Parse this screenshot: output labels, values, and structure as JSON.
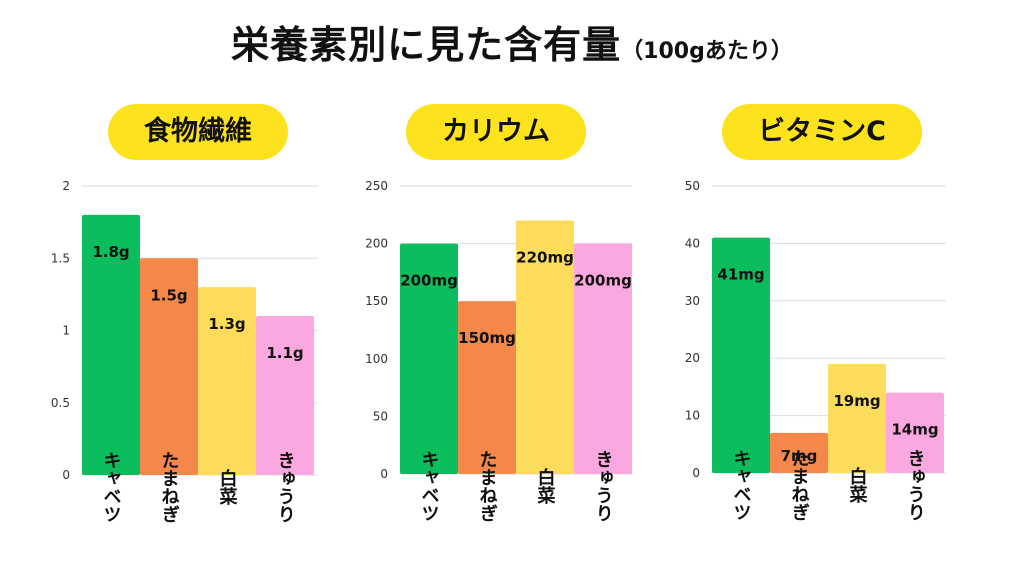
{
  "title": {
    "main": "栄養素別に見た含有量",
    "sub": "（100gあたり）"
  },
  "colors": {
    "bar_colors": [
      "#0bbd5c",
      "#f4884a",
      "#fddc5c",
      "#fca8e0"
    ],
    "title_bg": "#fde21e",
    "grid": "#dddddd"
  },
  "chart_data": [
    {
      "type": "bar",
      "title": "食物繊維",
      "categories": [
        "キャベツ",
        "たまねぎ",
        "白菜",
        "きゅうり"
      ],
      "values": [
        1.8,
        1.5,
        1.3,
        1.1
      ],
      "data_labels": [
        "1.8g",
        "1.5g",
        "1.3g",
        "1.1g"
      ],
      "ylim": [
        0,
        2
      ],
      "yticks": [
        0,
        0.5,
        1,
        1.5,
        2
      ],
      "ytick_labels": [
        "0",
        "0.5",
        "1",
        "1.5",
        "2"
      ],
      "grid": true
    },
    {
      "type": "bar",
      "title": "カリウム",
      "categories": [
        "キャベツ",
        "たまねぎ",
        "白菜",
        "きゅうり"
      ],
      "values": [
        200,
        150,
        220,
        200
      ],
      "data_labels": [
        "200mg",
        "150mg",
        "220mg",
        "200mg"
      ],
      "ylim": [
        0,
        250
      ],
      "yticks": [
        0,
        50,
        100,
        150,
        200,
        250
      ],
      "ytick_labels": [
        "0",
        "50",
        "100",
        "150",
        "200",
        "250"
      ],
      "grid": true
    },
    {
      "type": "bar",
      "title": "ビタミンC",
      "categories": [
        "キャベツ",
        "たまねぎ",
        "白菜",
        "きゅうり"
      ],
      "values": [
        41,
        7,
        19,
        14
      ],
      "data_labels": [
        "41mg",
        "7mg",
        "19mg",
        "14mg"
      ],
      "ylim": [
        0,
        50
      ],
      "yticks": [
        0,
        10,
        20,
        30,
        40,
        50
      ],
      "ytick_labels": [
        "0",
        "10",
        "20",
        "30",
        "40",
        "50"
      ],
      "grid": true
    }
  ]
}
